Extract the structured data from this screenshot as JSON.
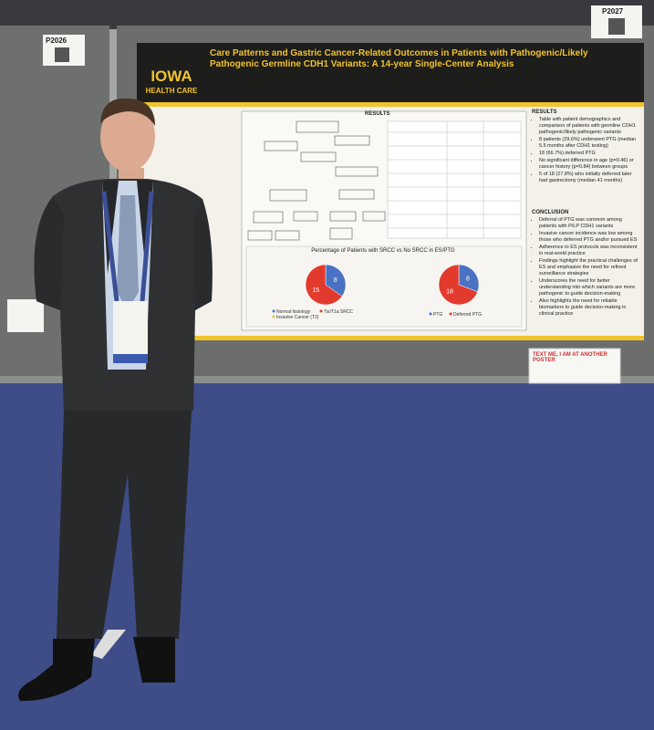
{
  "booth_tags": [
    "P2026",
    "P2027"
  ],
  "poster": {
    "logo": {
      "name": "IOWA",
      "subtitle": "HEALTH CARE"
    },
    "title": "Care Patterns and Gastric Cancer-Related Outcomes in Patients with Pathogenic/Likely Pathogenic Germline CDH1 Variants: A 14-year Single-Center Analysis",
    "middle_heading": "RESULTS",
    "results_heading": "RESULTS",
    "results": [
      "Table with patient demographics and comparison of patients with germline CDH1 pathogenic/likely pathogenic variants",
      "8 patients (29.6%) underwent PTG (median 5.5 months after CDH1 testing)",
      "18 (66.7%) deferred PTG",
      "No significant difference in age (p=0.46) or cancer history (p=0.84) between groups",
      "5 of 18 (27.8%) who initially deferred later had gastrectomy (median 41 months)"
    ],
    "conclusion_heading": "CONCLUSION",
    "conclusion": [
      "Deferral of PTG was common among patients with P/LP CDH1 variants",
      "Invasive cancer incidence was low among those who deferred PTG and/or pursued ES",
      "Adherence to ES protocols was inconsistent in real-world practice",
      "Findings highlight the practical challenges of ES and emphasize the need for refined surveillance strategies",
      "Underscores the need for better understanding into which variants are more pathogenic to guide decision-making",
      "Also highlights the need for reliable biomarkers to guide decision-making in clinical practice"
    ],
    "chart": {
      "type": "pie",
      "title": "Percentage of Patients with SRCC vs No SRCC in ES/PTG",
      "pies": [
        {
          "values": [
            8,
            15
          ],
          "colors": [
            "#4a72c4",
            "#e23b2e"
          ],
          "legend": [
            {
              "name": "Normal histology",
              "color": "#4a72c4"
            },
            {
              "name": "Tis/T1a SRCC",
              "color": "#e23b2e"
            },
            {
              "name": "Invasive Cancer (T2)",
              "color": "#e8c23a"
            }
          ]
        },
        {
          "values": [
            8,
            18
          ],
          "colors": [
            "#4a72c4",
            "#e23b2e"
          ],
          "legend": [
            {
              "name": "PTG",
              "color": "#4a72c4"
            },
            {
              "name": "Deferred PTG",
              "color": "#e23b2e"
            }
          ]
        }
      ]
    }
  },
  "sign": "TEXT ME, I AM AT ANOTHER POSTER"
}
